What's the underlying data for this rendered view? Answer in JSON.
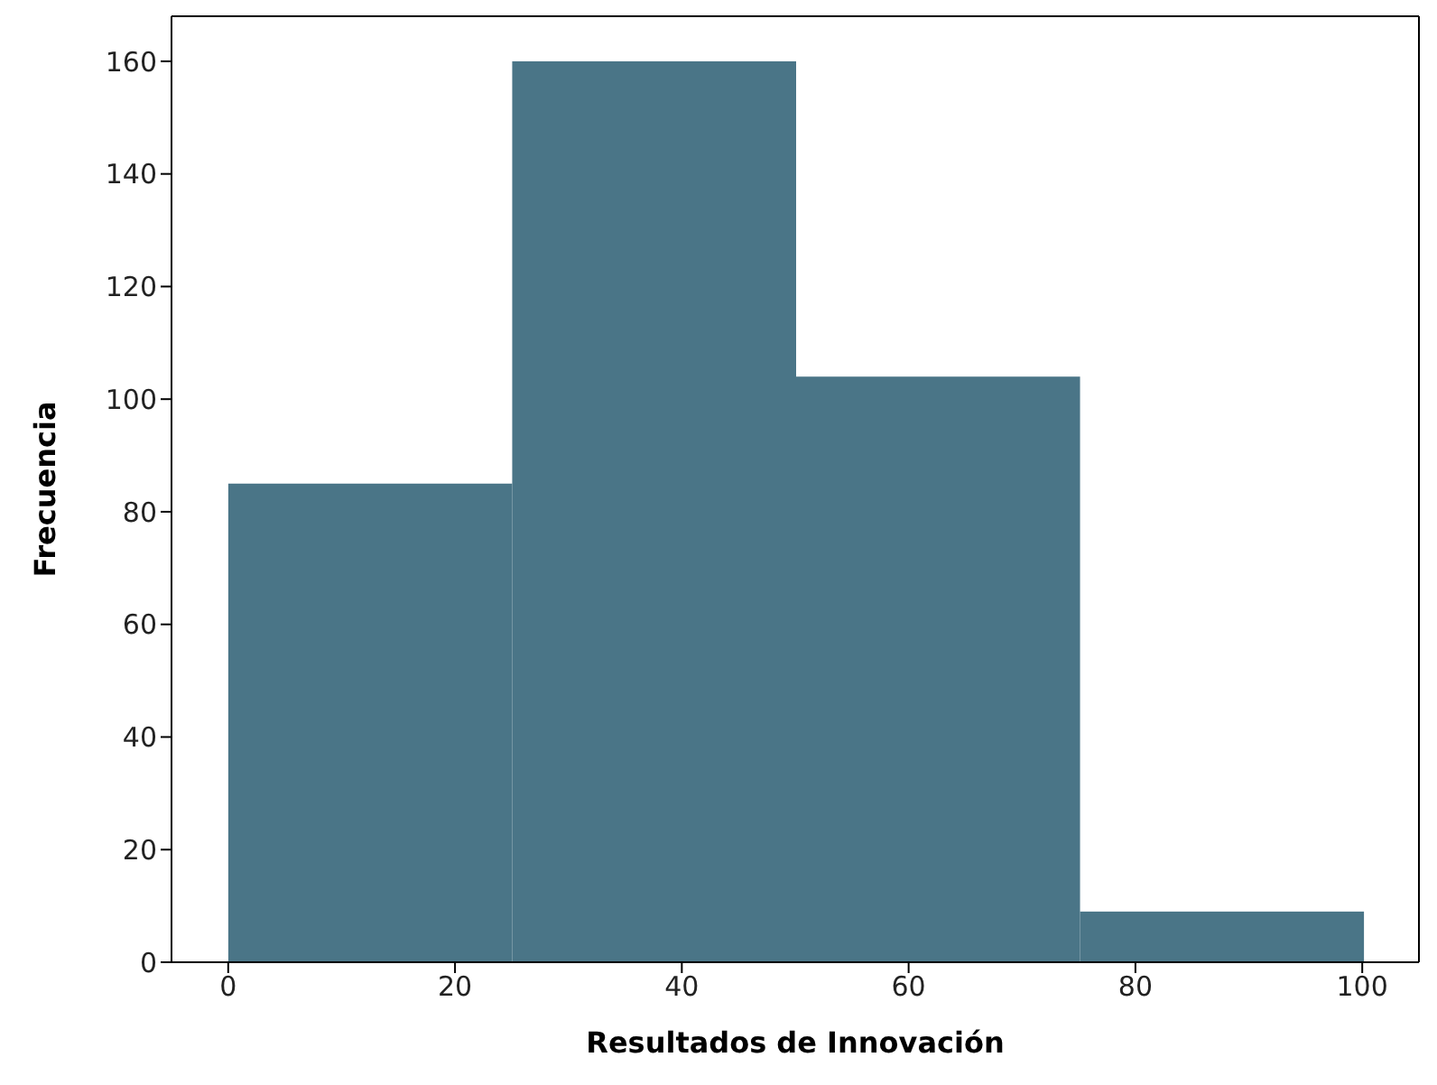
{
  "chart_data": {
    "type": "histogram",
    "xlabel": "Resultados de Innovación",
    "ylabel": "Frecuencia",
    "bins": [
      0,
      25,
      50,
      75,
      100
    ],
    "values": [
      85,
      160,
      104,
      9
    ],
    "color": "#4a7587",
    "xlim": [
      -5,
      105
    ],
    "xticks": [
      0,
      20,
      40,
      60,
      80,
      100
    ],
    "ylim": [
      0,
      168
    ],
    "yticks": [
      0,
      20,
      40,
      60,
      80,
      100,
      120,
      140,
      160
    ],
    "grid": false
  }
}
